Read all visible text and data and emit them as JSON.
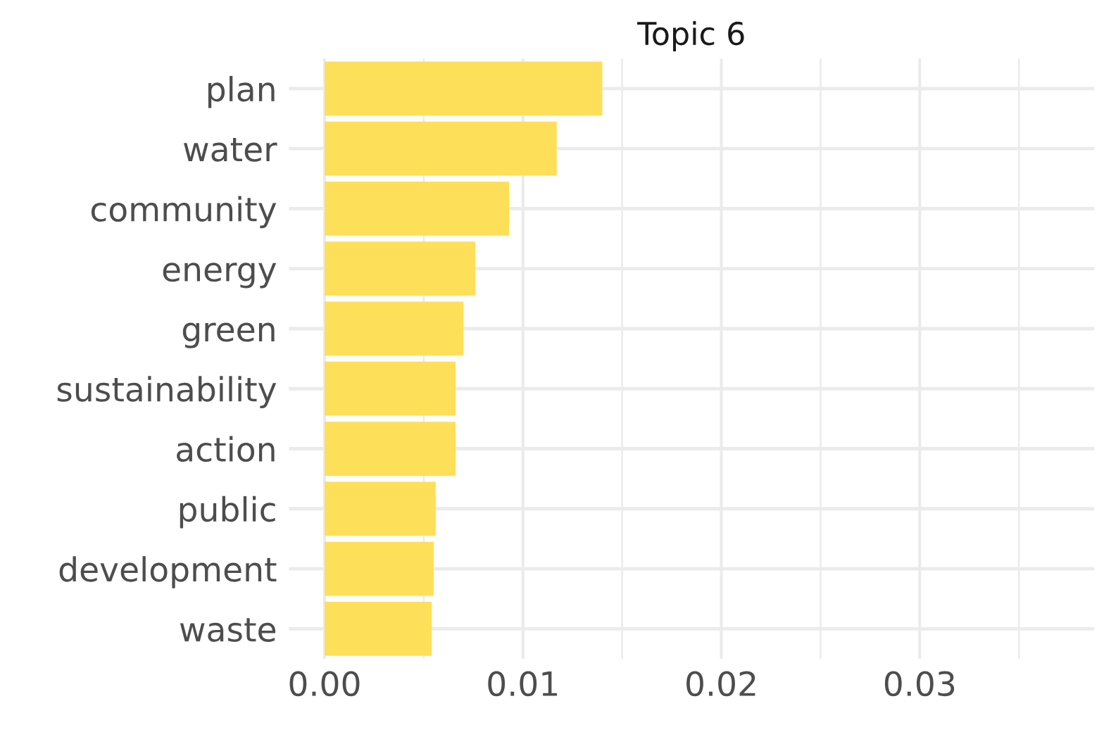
{
  "chart_data": {
    "type": "bar",
    "orientation": "horizontal",
    "title": "Topic 6",
    "categories": [
      "plan",
      "water",
      "community",
      "energy",
      "green",
      "sustainability",
      "action",
      "public",
      "development",
      "waste"
    ],
    "values": [
      0.014,
      0.0117,
      0.0093,
      0.0076,
      0.007,
      0.0066,
      0.0066,
      0.0056,
      0.0055,
      0.0054
    ],
    "color": "#fedf5a",
    "xlim": [
      -0.0018,
      0.0388
    ],
    "xticks": [
      {
        "value": 0,
        "label": "0.00"
      },
      {
        "value": 0.005,
        "label": null
      },
      {
        "value": 0.01,
        "label": "0.01"
      },
      {
        "value": 0.015,
        "label": null
      },
      {
        "value": 0.02,
        "label": "0.02"
      },
      {
        "value": 0.025,
        "label": null
      },
      {
        "value": 0.03,
        "label": "0.03"
      },
      {
        "value": 0.035,
        "label": null
      }
    ],
    "grid": true
  }
}
